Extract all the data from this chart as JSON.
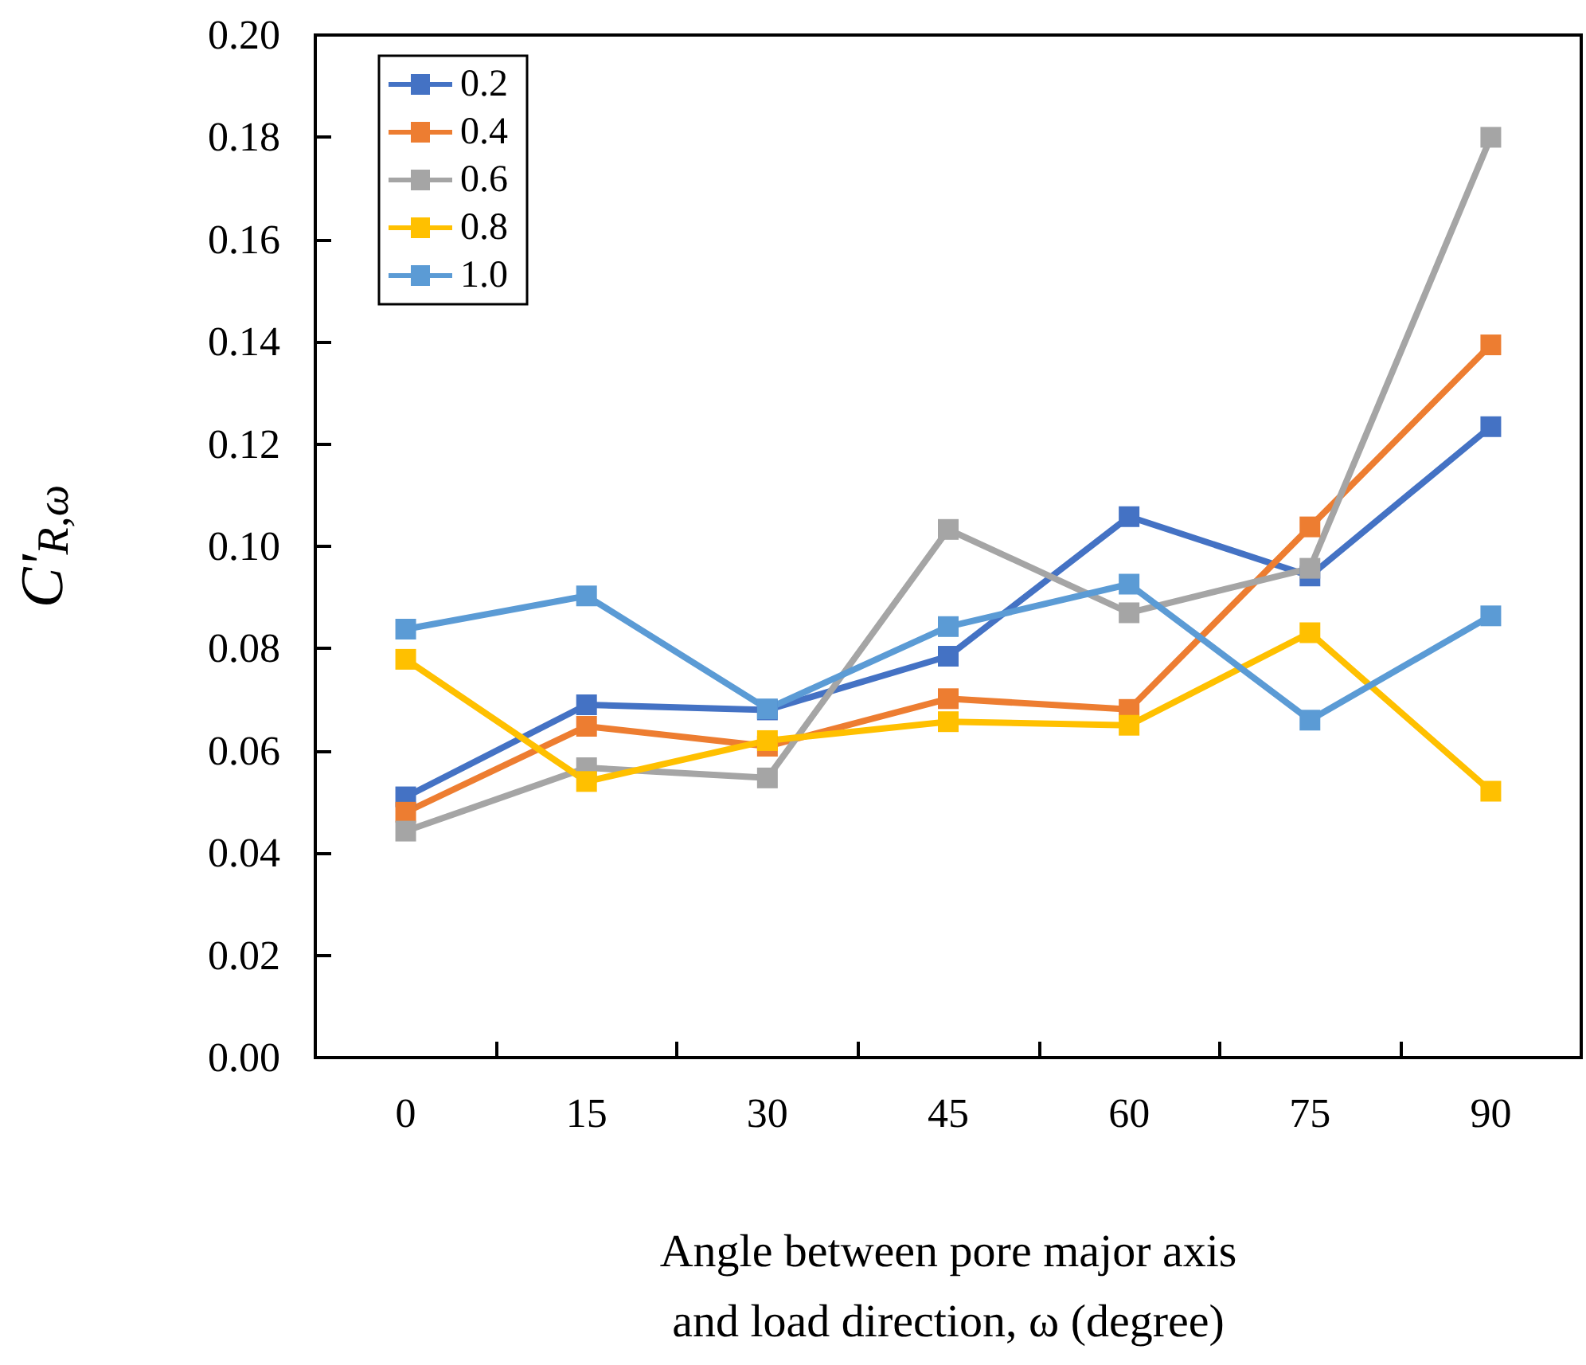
{
  "chart_data": {
    "type": "line",
    "xlabel": "Angle between pore major axis\nand load direction, ω (degree)",
    "ylabel": "C'$_{R,ω}$",
    "categories": [
      "0",
      "15",
      "30",
      "45",
      "60",
      "75",
      "90"
    ],
    "series": [
      {
        "name": "0.2",
        "color": "#4472c4",
        "values": [
          0.051,
          0.069,
          0.068,
          0.0785,
          0.1058,
          0.0942,
          0.1234
        ]
      },
      {
        "name": "0.4",
        "color": "#ed7d31",
        "values": [
          0.048,
          0.0648,
          0.0609,
          0.0702,
          0.0681,
          0.1038,
          0.1394
        ]
      },
      {
        "name": "0.6",
        "color": "#a5a5a5",
        "values": [
          0.0443,
          0.0567,
          0.0547,
          0.1033,
          0.087,
          0.0957,
          0.18
        ]
      },
      {
        "name": "0.8",
        "color": "#ffc000",
        "values": [
          0.0779,
          0.054,
          0.062,
          0.0657,
          0.065,
          0.0831,
          0.0521
        ]
      },
      {
        "name": "1.0",
        "color": "#5b9bd5",
        "values": [
          0.0838,
          0.0903,
          0.0682,
          0.0843,
          0.0926,
          0.066,
          0.0864
        ]
      }
    ],
    "ylim": [
      0,
      0.2
    ],
    "yticks": [
      {
        "value": 0,
        "label": "0.00"
      },
      {
        "value": 0.02,
        "label": "0.02"
      },
      {
        "value": 0.04,
        "label": "0.04"
      },
      {
        "value": 0.06,
        "label": "0.06"
      },
      {
        "value": 0.08,
        "label": "0.08"
      },
      {
        "value": 0.1,
        "label": "0.10"
      },
      {
        "value": 0.12,
        "label": "0.12"
      },
      {
        "value": 0.14,
        "label": "0.14"
      },
      {
        "value": 0.16,
        "label": "0.16"
      },
      {
        "value": 0.18,
        "label": "0.18"
      },
      {
        "value": 0.2,
        "label": "0.20"
      }
    ],
    "grid": false,
    "legend": "top left",
    "marker": "square",
    "line_style": "solid"
  }
}
